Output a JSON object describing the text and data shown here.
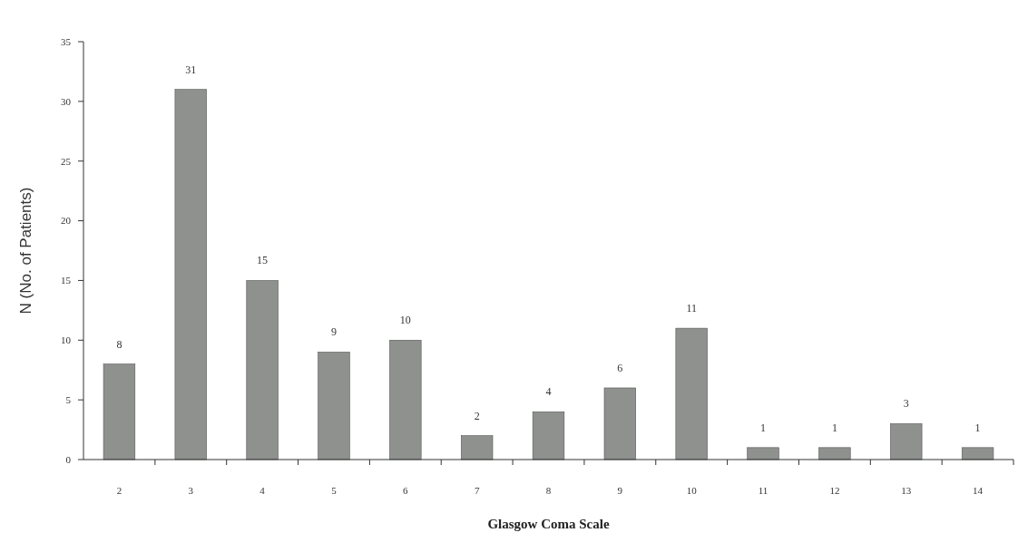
{
  "chart_data": {
    "type": "bar",
    "xlabel": "Glasgow Coma Scale",
    "ylabel": "N (No. of Patients)",
    "categories": [
      "2",
      "3",
      "4",
      "5",
      "6",
      "7",
      "8",
      "9",
      "10",
      "11",
      "12",
      "13",
      "14"
    ],
    "values": [
      8,
      31,
      15,
      9,
      10,
      2,
      4,
      6,
      11,
      1,
      1,
      3,
      1
    ],
    "color": "#8e918e",
    "ylim": [
      0,
      35
    ],
    "yticks": [
      0,
      5,
      10,
      15,
      20,
      25,
      30,
      35
    ],
    "grid": false,
    "data_labels": true
  }
}
